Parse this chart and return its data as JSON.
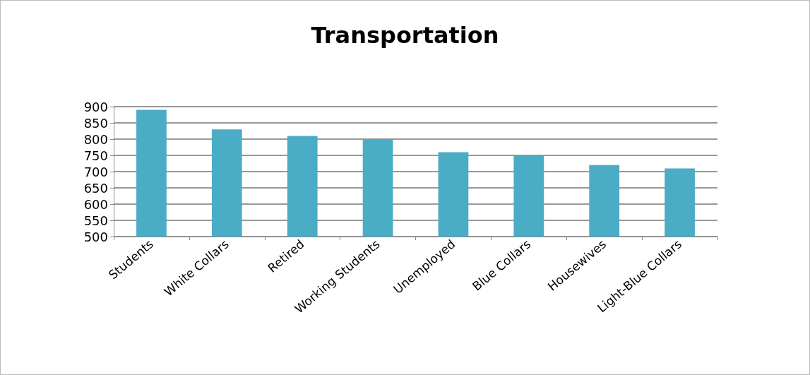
{
  "chart_data": {
    "type": "bar",
    "title": "Transportation",
    "categories": [
      "Students",
      "White Collars",
      "Retired",
      "Working Students",
      "Unemployed",
      "Blue Collars",
      "Housewives",
      "Light-Blue Collars"
    ],
    "values": [
      890,
      830,
      810,
      800,
      760,
      750,
      720,
      710
    ],
    "color": "#4bacc6",
    "ylim": [
      500,
      900
    ],
    "yticks": [
      500,
      550,
      600,
      650,
      700,
      750,
      800,
      850,
      900
    ],
    "grid": "y"
  }
}
